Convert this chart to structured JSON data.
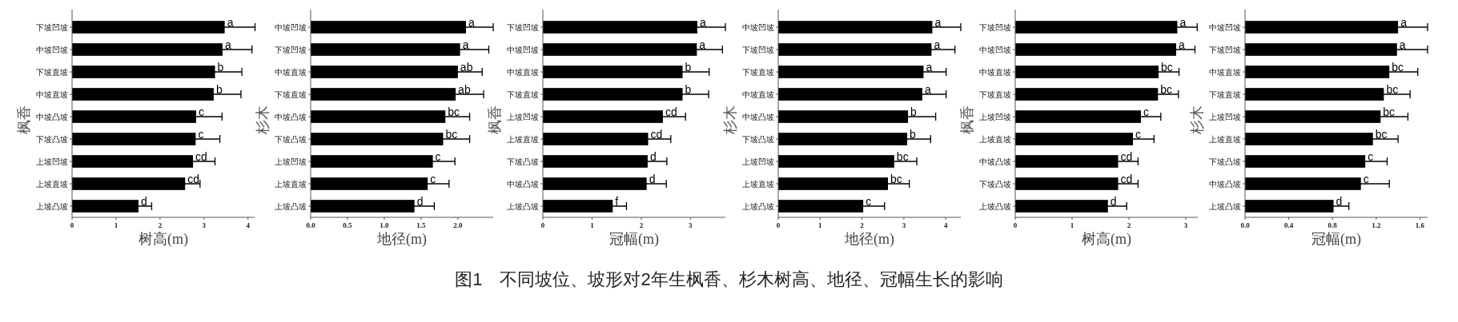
{
  "chart_data": [
    {
      "type": "bar",
      "orientation": "horizontal",
      "ylabel": "枫香",
      "xlabel": "树高(m)",
      "categories": [
        "下坡凹坡",
        "中坡凹坡",
        "下坡直坡",
        "中坡直坡",
        "中坡凸坡",
        "下坡凸坡",
        "上坡凹坡",
        "上坡直坡",
        "上坡凸坡"
      ],
      "values": [
        3.47,
        3.42,
        3.25,
        3.22,
        2.82,
        2.81,
        2.75,
        2.57,
        1.51
      ],
      "errors": [
        0.69,
        0.67,
        0.61,
        0.62,
        0.59,
        0.55,
        0.5,
        0.34,
        0.3
      ],
      "value_labels": [
        "a",
        "a",
        "b",
        "b",
        "c",
        "c",
        "cd",
        "cd",
        "d"
      ],
      "color": "#000000",
      "xlim": [
        0,
        4.15
      ],
      "xticks": [
        0,
        1,
        2,
        3,
        4
      ],
      "grid": false,
      "annotations": [
        "图1　不同坡位、坡形对2年生枫香、杉木树高、地径、冠幅生长的影响"
      ]
    },
    {
      "type": "bar",
      "orientation": "horizontal",
      "ylabel": "杉木",
      "xlabel": "地径(m)",
      "categories": [
        "中坡凹坡",
        "下坡凹坡",
        "中坡直坡",
        "下坡直坡",
        "中坡凸坡",
        "下坡凸坡",
        "上坡凹坡",
        "上坡直坡",
        "上坡凸坡"
      ],
      "values": [
        2.11,
        2.03,
        2.0,
        1.97,
        1.83,
        1.8,
        1.66,
        1.59,
        1.41
      ],
      "errors": [
        0.37,
        0.39,
        0.33,
        0.38,
        0.33,
        0.36,
        0.3,
        0.29,
        0.27
      ],
      "value_labels": [
        "a",
        "a",
        "ab",
        "ab",
        "bc",
        "bc",
        "c",
        "c",
        "d"
      ],
      "color": "#000000",
      "xlim": [
        0,
        2.48
      ],
      "xticks": [
        {
          "value": 0,
          "label": "0.0"
        },
        0.5,
        {
          "value": 1,
          "label": "1.0"
        },
        1.5,
        {
          "value": 2,
          "label": "2.0"
        }
      ],
      "grid": false
    },
    {
      "type": "bar",
      "orientation": "horizontal",
      "ylabel": "枫香",
      "xlabel": "冠幅(m)",
      "categories": [
        "下坡凹坡",
        "中坡凹坡",
        "中坡直坡",
        "下坡直坡",
        "上坡凹坡",
        "上坡直坡",
        "下坡凸坡",
        "中坡凸坡",
        "上坡凸坡"
      ],
      "values": [
        3.14,
        3.13,
        2.84,
        2.84,
        2.44,
        2.14,
        2.13,
        2.11,
        1.42
      ],
      "errors": [
        0.57,
        0.52,
        0.54,
        0.53,
        0.46,
        0.46,
        0.39,
        0.4,
        0.28
      ],
      "value_labels": [
        "a",
        "a",
        "b",
        "b",
        "cd",
        "cd",
        "d",
        "d",
        "f"
      ],
      "color": "#000000",
      "xlim": [
        0,
        3.71
      ],
      "xticks": [
        0,
        1,
        2,
        3
      ],
      "grid": false
    },
    {
      "type": "bar",
      "orientation": "horizontal",
      "ylabel": "杉木",
      "xlabel": "地径(m)",
      "categories": [
        "中坡凹坡",
        "下坡凹坡",
        "下坡直坡",
        "中坡直坡",
        "中坡凸坡",
        "下坡凸坡",
        "上坡凹坡",
        "上坡直坡",
        "上坡凸坡"
      ],
      "values": [
        3.68,
        3.66,
        3.47,
        3.44,
        3.1,
        3.08,
        2.77,
        2.62,
        2.03
      ],
      "errors": [
        0.68,
        0.56,
        0.54,
        0.57,
        0.66,
        0.56,
        0.54,
        0.51,
        0.51
      ],
      "value_labels": [
        "a",
        "a",
        "a",
        "a",
        "b",
        "b",
        "bc",
        "bc",
        "c"
      ],
      "color": "#000000",
      "xlim": [
        0,
        4.36
      ],
      "xticks": [
        0,
        1,
        2,
        3,
        4
      ],
      "grid": false
    },
    {
      "type": "bar",
      "orientation": "horizontal",
      "ylabel": "枫香",
      "xlabel": "树高(m)",
      "categories": [
        "下坡凹坡",
        "中坡凹坡",
        "中坡直坡",
        "下坡直坡",
        "上坡凹坡",
        "上坡直坡",
        "中坡凸坡",
        "下坡凸坡",
        "上坡凸坡"
      ],
      "values": [
        2.85,
        2.83,
        2.52,
        2.51,
        2.21,
        2.07,
        1.81,
        1.81,
        1.63
      ],
      "errors": [
        0.35,
        0.33,
        0.36,
        0.36,
        0.35,
        0.37,
        0.35,
        0.35,
        0.33
      ],
      "value_labels": [
        "a",
        "a",
        "bc",
        "bc",
        "c",
        "c",
        "cd",
        "cd",
        "d"
      ],
      "color": "#000000",
      "xlim": [
        0,
        3.21
      ],
      "xticks": [
        0,
        1,
        2,
        3
      ],
      "grid": false
    },
    {
      "type": "bar",
      "orientation": "horizontal",
      "ylabel": "杉木",
      "xlabel": "冠幅(m)",
      "categories": [
        "中坡凹坡",
        "下坡凹坡",
        "中坡直坡",
        "下坡直坡",
        "上坡凹坡",
        "上坡直坡",
        "下坡凸坡",
        "中坡凸坡",
        "上坡凸坡"
      ],
      "values": [
        1.4,
        1.39,
        1.32,
        1.27,
        1.24,
        1.17,
        1.1,
        1.06,
        0.81
      ],
      "errors": [
        0.27,
        0.28,
        0.26,
        0.24,
        0.25,
        0.23,
        0.2,
        0.26,
        0.14
      ],
      "value_labels": [
        "a",
        "a",
        "bc",
        "bc",
        "bc",
        "bc",
        "c",
        "c",
        "d"
      ],
      "color": "#000000",
      "xlim": [
        0,
        1.67
      ],
      "xticks": [
        {
          "value": 0,
          "label": "0.0"
        },
        0.4,
        0.8,
        1.2,
        1.6
      ],
      "grid": false
    }
  ]
}
